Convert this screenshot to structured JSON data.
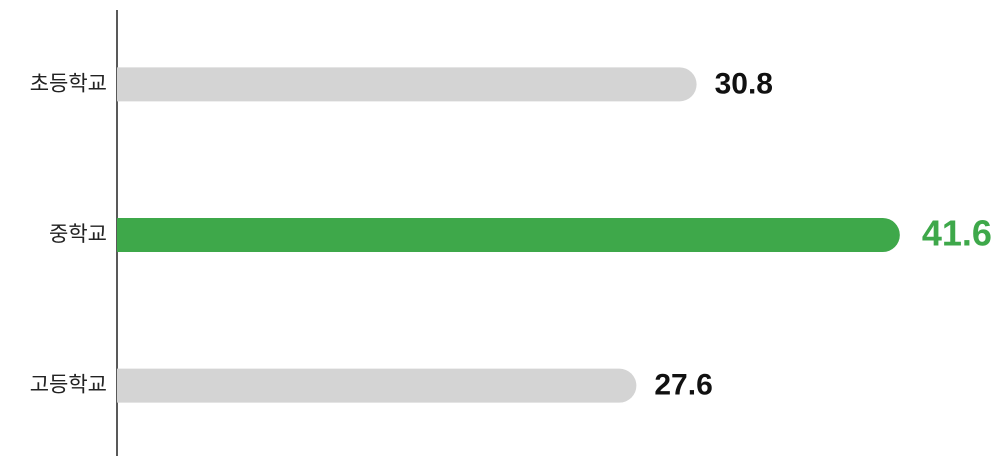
{
  "chart_data": {
    "type": "bar",
    "orientation": "horizontal",
    "categories": [
      "초등학교",
      "중학교",
      "고등학교"
    ],
    "values": [
      30.8,
      41.6,
      27.6
    ],
    "colors": [
      "#d4d4d4",
      "#3ea84a",
      "#d4d4d4"
    ],
    "label_colors": [
      "#111111",
      "#3ea84a",
      "#111111"
    ],
    "xlim": [
      0,
      44
    ]
  }
}
